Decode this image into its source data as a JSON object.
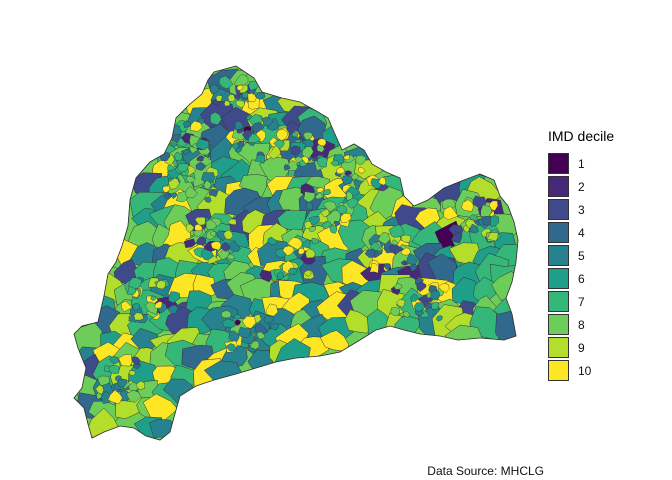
{
  "legend": {
    "title": "IMD decile",
    "items": [
      {
        "label": "1",
        "color": "#440154"
      },
      {
        "label": "2",
        "color": "#482878"
      },
      {
        "label": "3",
        "color": "#3E4A89"
      },
      {
        "label": "4",
        "color": "#31688E"
      },
      {
        "label": "5",
        "color": "#26828E"
      },
      {
        "label": "6",
        "color": "#1F9E89"
      },
      {
        "label": "7",
        "color": "#35B779"
      },
      {
        "label": "8",
        "color": "#6DCD59"
      },
      {
        "label": "9",
        "color": "#B4DE2C"
      },
      {
        "label": "10",
        "color": "#FDE725"
      }
    ]
  },
  "caption": "Data Source: MHCLG",
  "map": {
    "border_color": "#333333",
    "background": "#ffffff"
  }
}
